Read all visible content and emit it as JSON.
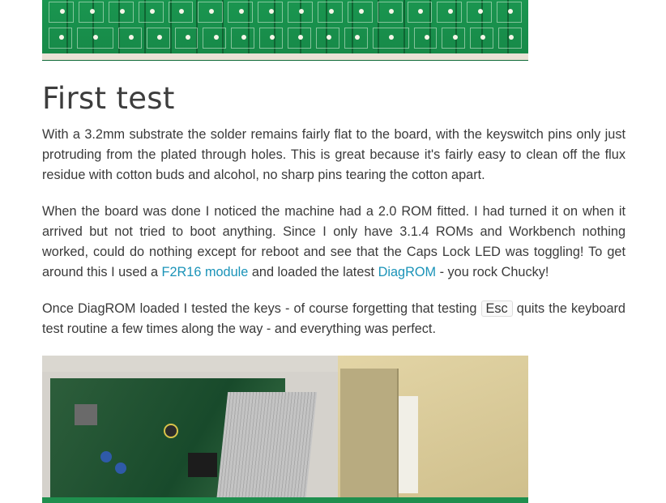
{
  "heading": "First test",
  "paragraph1": "With a 3.2mm substrate the solder remains fairly flat to the board, with the keyswitch pins only just protruding from the plated through holes. This is great because it's fairly easy to clean off the flux residue with cotton buds and alcohol, no sharp pins tearing the cotton apart.",
  "paragraph2": {
    "text_before_link1": "When the board was done I noticed the machine had a 2.0 ROM fitted. I had turned it on when it arrived but not tried to boot anything. Since I only have 3.1.4 ROMs and Workbench nothing worked, could do nothing except for reboot and see that the Caps Lock LED was toggling! To get around this I used a ",
    "link1": "F2R16 module",
    "text_between": " and loaded the latest ",
    "link2": "DiagROM",
    "text_after": " - you rock Chucky!"
  },
  "paragraph3": {
    "text_before_code": "Once DiagROM loaded I tested the keys - of course forgetting that testing ",
    "code": "Esc",
    "text_after_code": " quits the keyboard test routine a few times along the way - and everything was perfect."
  },
  "colors": {
    "link": "#1a93b8",
    "text": "#3a3a3a",
    "pcb_green": "#17894a"
  }
}
